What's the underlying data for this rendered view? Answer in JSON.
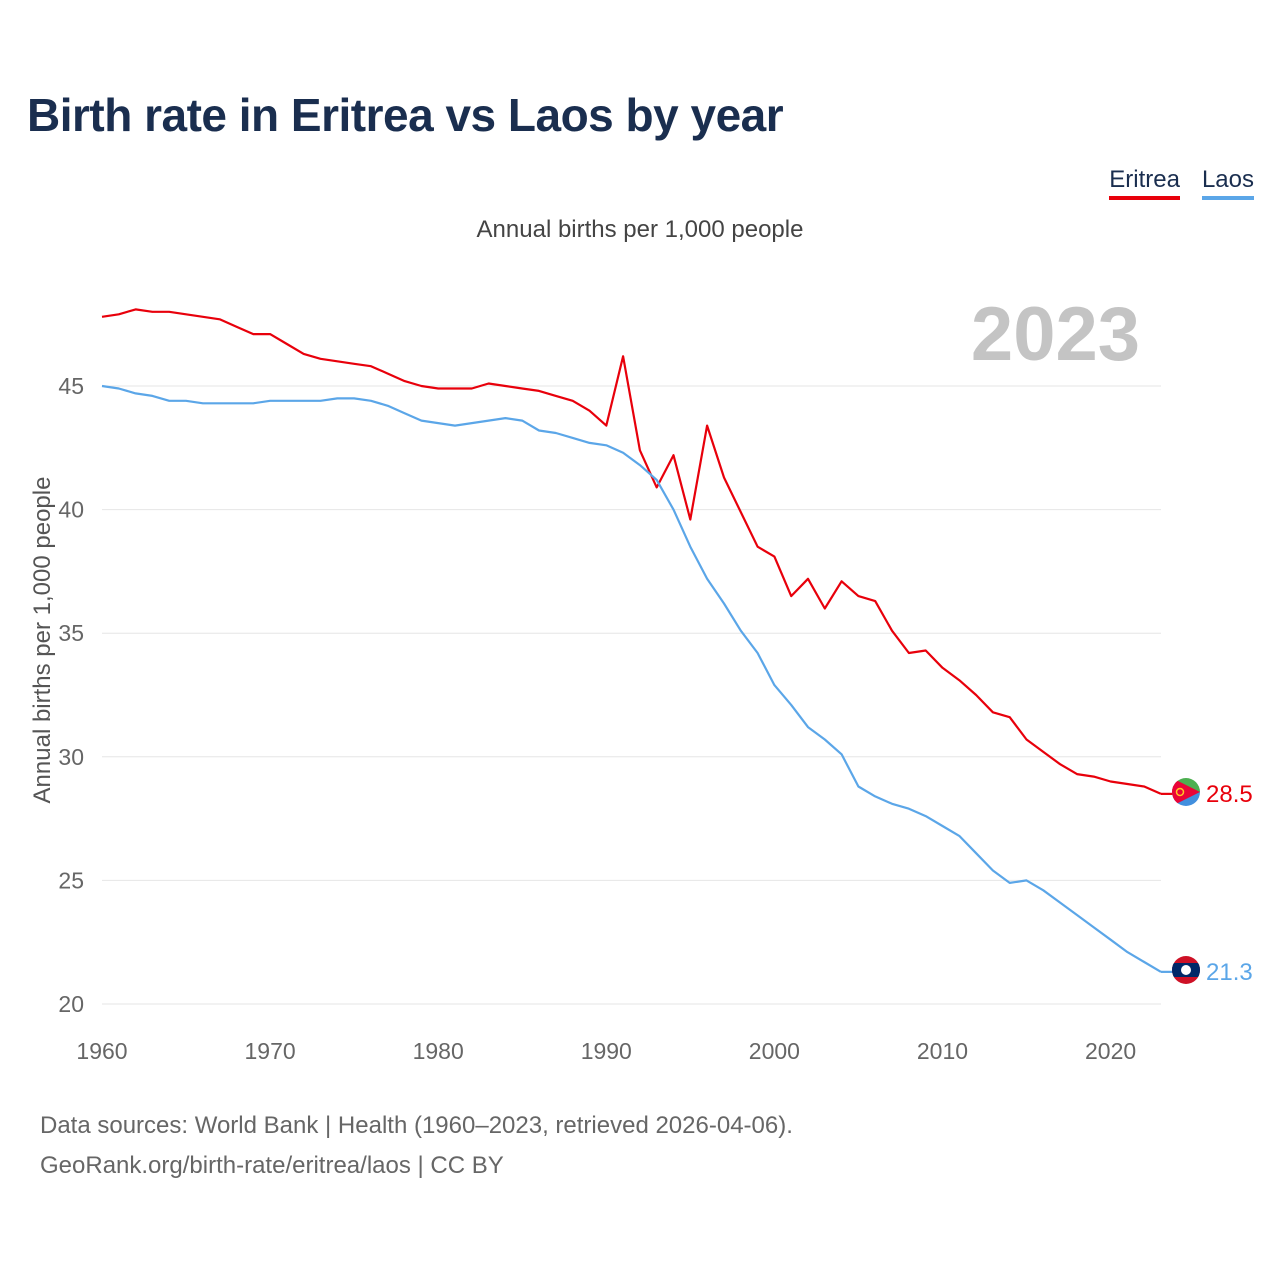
{
  "title": "Birth rate in Eritrea vs Laos by year",
  "legend": [
    {
      "name": "Eritrea",
      "color": "#e8000b"
    },
    {
      "name": "Laos",
      "color": "#5ba6e8"
    }
  ],
  "subtitle": "Annual births per 1,000 people",
  "year_watermark": "2023",
  "footer": {
    "line1": "Data sources: World Bank | Health (1960–2023, retrieved 2026-04-06).",
    "line2": "GeoRank.org/birth-rate/eritrea/laos | CC BY"
  },
  "chart_data": {
    "type": "line",
    "title": "Birth rate in Eritrea vs Laos by year",
    "xlabel": "",
    "ylabel": "Annual births per 1,000 people",
    "xlim": [
      1960,
      2023
    ],
    "ylim": [
      20,
      48.5
    ],
    "yticks": [
      20,
      25,
      30,
      35,
      40,
      45
    ],
    "xticks": [
      1960,
      1970,
      1980,
      1990,
      2000,
      2010,
      2020
    ],
    "grid": true,
    "x": [
      1960,
      1961,
      1962,
      1963,
      1964,
      1965,
      1966,
      1967,
      1968,
      1969,
      1970,
      1971,
      1972,
      1973,
      1974,
      1975,
      1976,
      1977,
      1978,
      1979,
      1980,
      1981,
      1982,
      1983,
      1984,
      1985,
      1986,
      1987,
      1988,
      1989,
      1990,
      1991,
      1992,
      1993,
      1994,
      1995,
      1996,
      1997,
      1998,
      1999,
      2000,
      2001,
      2002,
      2003,
      2004,
      2005,
      2006,
      2007,
      2008,
      2009,
      2010,
      2011,
      2012,
      2013,
      2014,
      2015,
      2016,
      2017,
      2018,
      2019,
      2020,
      2021,
      2022,
      2023
    ],
    "series": [
      {
        "name": "Eritrea",
        "color": "#e8000b",
        "last_label": "28.5",
        "values": [
          47.8,
          47.9,
          48.1,
          48.0,
          48.0,
          47.9,
          47.8,
          47.7,
          47.4,
          47.1,
          47.1,
          46.7,
          46.3,
          46.1,
          46.0,
          45.9,
          45.8,
          45.5,
          45.2,
          45.0,
          44.9,
          44.9,
          44.9,
          45.1,
          45.0,
          44.9,
          44.8,
          44.6,
          44.4,
          44.0,
          43.4,
          46.2,
          42.4,
          40.9,
          42.2,
          39.6,
          43.4,
          41.3,
          39.9,
          38.5,
          38.1,
          36.5,
          37.2,
          36.0,
          37.1,
          36.5,
          36.3,
          35.1,
          34.2,
          34.3,
          33.6,
          33.1,
          32.5,
          31.8,
          31.6,
          30.7,
          30.2,
          29.7,
          29.3,
          29.2,
          29.0,
          28.9,
          28.8,
          28.5
        ]
      },
      {
        "name": "Laos",
        "color": "#5ba6e8",
        "last_label": "21.3",
        "values": [
          45.0,
          44.9,
          44.7,
          44.6,
          44.4,
          44.4,
          44.3,
          44.3,
          44.3,
          44.3,
          44.4,
          44.4,
          44.4,
          44.4,
          44.5,
          44.5,
          44.4,
          44.2,
          43.9,
          43.6,
          43.5,
          43.4,
          43.5,
          43.6,
          43.7,
          43.6,
          43.2,
          43.1,
          42.9,
          42.7,
          42.6,
          42.3,
          41.8,
          41.2,
          40.0,
          38.5,
          37.2,
          36.2,
          35.1,
          34.2,
          32.9,
          32.1,
          31.2,
          30.7,
          30.1,
          28.8,
          28.4,
          28.1,
          27.9,
          27.6,
          27.2,
          26.8,
          26.1,
          25.4,
          24.9,
          25.0,
          24.6,
          24.1,
          23.6,
          23.1,
          22.6,
          22.1,
          21.7,
          21.3
        ]
      }
    ]
  }
}
